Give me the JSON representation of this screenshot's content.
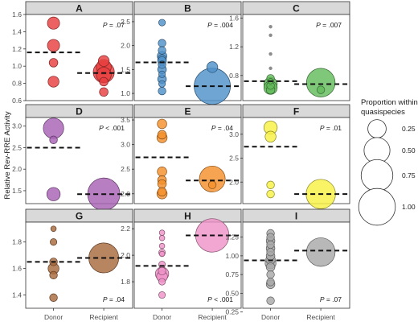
{
  "chart_data": {
    "type": "scatter",
    "ylabel": "Relative Rev-RRE Activity",
    "categories": [
      "Donor",
      "Recipient"
    ],
    "legend": {
      "title_line1": "Proportion within",
      "title_line2": "quasispecies",
      "position": "right",
      "sizes": [
        "0.25",
        "0.50",
        "0.75",
        "1.00"
      ]
    },
    "panels": [
      {
        "label": "A",
        "color": "#e8403f",
        "p_prefix": "P",
        "p_value": "= .07",
        "p_pos": "top",
        "ylim": [
          0.6,
          1.6
        ],
        "yticks": [
          "0.6",
          "0.8",
          "1.0",
          "1.2",
          "1.4",
          "1.6"
        ],
        "medians": [
          1.16,
          0.92
        ],
        "points": [
          {
            "group": "Donor",
            "y": 1.5,
            "size": 0.1
          },
          {
            "group": "Donor",
            "y": 1.24,
            "size": 0.1
          },
          {
            "group": "Donor",
            "y": 1.04,
            "size": 0.05
          },
          {
            "group": "Donor",
            "y": 0.82,
            "size": 0.08
          },
          {
            "group": "Recipient",
            "y": 1.06,
            "size": 0.08
          },
          {
            "group": "Recipient",
            "y": 0.99,
            "size": 0.15
          },
          {
            "group": "Recipient",
            "y": 0.93,
            "size": 0.3
          },
          {
            "group": "Recipient",
            "y": 0.9,
            "size": 0.15
          },
          {
            "group": "Recipient",
            "y": 0.82,
            "size": 0.05
          },
          {
            "group": "Recipient",
            "y": 0.7,
            "size": 0.05
          }
        ]
      },
      {
        "label": "B",
        "color": "#4f91c9",
        "p_prefix": "P",
        "p_value": "= .004",
        "p_pos": "top",
        "ylim": [
          0.85,
          2.65
        ],
        "yticks": [
          "1.0",
          "1.5",
          "2.0",
          "2.5"
        ],
        "medians": [
          1.65,
          1.15
        ],
        "points": [
          {
            "group": "Donor",
            "y": 2.48,
            "size": 0.03
          },
          {
            "group": "Donor",
            "y": 2.05,
            "size": 0.04
          },
          {
            "group": "Donor",
            "y": 1.9,
            "size": 0.04
          },
          {
            "group": "Donor",
            "y": 1.78,
            "size": 0.06
          },
          {
            "group": "Donor",
            "y": 1.72,
            "size": 0.05
          },
          {
            "group": "Donor",
            "y": 1.68,
            "size": 0.05
          },
          {
            "group": "Donor",
            "y": 1.6,
            "size": 0.04
          },
          {
            "group": "Donor",
            "y": 1.5,
            "size": 0.05
          },
          {
            "group": "Donor",
            "y": 1.4,
            "size": 0.03
          },
          {
            "group": "Donor",
            "y": 1.3,
            "size": 0.05
          },
          {
            "group": "Donor",
            "y": 1.2,
            "size": 0.03
          },
          {
            "group": "Donor",
            "y": 1.05,
            "size": 0.04
          },
          {
            "group": "Recipient",
            "y": 1.55,
            "size": 0.08
          },
          {
            "group": "Recipient",
            "y": 1.15,
            "size": 0.88
          }
        ]
      },
      {
        "label": "C",
        "color": "#63bb5c",
        "p_prefix": "P",
        "p_value": "= .007",
        "p_pos": "top",
        "ylim": [
          0.45,
          1.65
        ],
        "yticks": [
          "0.8",
          "1.2",
          "1.6"
        ],
        "medians": [
          0.72,
          0.68
        ],
        "points": [
          {
            "group": "Donor",
            "y": 1.48,
            "size": 0.005
          },
          {
            "group": "Donor",
            "y": 1.36,
            "size": 0.005
          },
          {
            "group": "Donor",
            "y": 1.1,
            "size": 0.005
          },
          {
            "group": "Donor",
            "y": 0.9,
            "size": 0.005
          },
          {
            "group": "Donor",
            "y": 0.76,
            "size": 0.04
          },
          {
            "group": "Donor",
            "y": 0.72,
            "size": 0.02
          },
          {
            "group": "Donor",
            "y": 0.68,
            "size": 0.12
          },
          {
            "group": "Donor",
            "y": 0.66,
            "size": 0.04
          },
          {
            "group": "Donor",
            "y": 0.63,
            "size": 0.12
          },
          {
            "group": "Donor",
            "y": 0.6,
            "size": 0.05
          },
          {
            "group": "Recipient",
            "y": 0.7,
            "size": 0.55
          },
          {
            "group": "Recipient",
            "y": 0.6,
            "size": 0.04
          }
        ]
      },
      {
        "label": "D",
        "color": "#a762b4",
        "p_prefix": "P",
        "p_value": "< .001",
        "p_pos": "top",
        "ylim": [
          1.2,
          3.2
        ],
        "yticks": [
          "1.5",
          "2.0",
          "2.5",
          "3.0"
        ],
        "medians": [
          2.5,
          1.42
        ],
        "points": [
          {
            "group": "Donor",
            "y": 2.95,
            "size": 0.28
          },
          {
            "group": "Donor",
            "y": 2.68,
            "size": 0.04
          },
          {
            "group": "Donor",
            "y": 1.42,
            "size": 0.12
          },
          {
            "group": "Recipient",
            "y": 1.42,
            "size": 0.7
          }
        ]
      },
      {
        "label": "E",
        "color": "#f4902c",
        "p_prefix": "P",
        "p_value": "= .04",
        "p_pos": "top",
        "ylim": [
          1.8,
          3.55
        ],
        "yticks": [
          "2.0",
          "2.5",
          "3.0",
          "3.5"
        ],
        "medians": [
          2.74,
          2.27
        ],
        "points": [
          {
            "group": "Donor",
            "y": 3.42,
            "size": 0.06
          },
          {
            "group": "Donor",
            "y": 3.2,
            "size": 0.05
          },
          {
            "group": "Donor",
            "y": 3.14,
            "size": 0.07
          },
          {
            "group": "Donor",
            "y": 2.45,
            "size": 0.06
          },
          {
            "group": "Donor",
            "y": 2.28,
            "size": 0.05
          },
          {
            "group": "Donor",
            "y": 2.2,
            "size": 0.05
          },
          {
            "group": "Donor",
            "y": 2.04,
            "size": 0.05
          },
          {
            "group": "Donor",
            "y": 2.0,
            "size": 0.07
          },
          {
            "group": "Recipient",
            "y": 2.3,
            "size": 0.45
          },
          {
            "group": "Recipient",
            "y": 2.18,
            "size": 0.04
          }
        ]
      },
      {
        "label": "F",
        "color": "#f8f044",
        "p_prefix": "P",
        "p_value": "= .01",
        "p_pos": "top",
        "ylim": [
          1.55,
          3.35
        ],
        "yticks": [
          "2.0",
          "2.5",
          "3.0"
        ],
        "medians": [
          2.74,
          1.75
        ],
        "points": [
          {
            "group": "Donor",
            "y": 3.14,
            "size": 0.12
          },
          {
            "group": "Donor",
            "y": 2.95,
            "size": 0.08
          },
          {
            "group": "Donor",
            "y": 1.94,
            "size": 0.04
          },
          {
            "group": "Donor",
            "y": 1.75,
            "size": 0.04
          },
          {
            "group": "Recipient",
            "y": 1.75,
            "size": 0.58
          }
        ]
      },
      {
        "label": "G",
        "color": "#a86a3e",
        "p_prefix": "P",
        "p_value": "= .04",
        "p_pos": "bottom",
        "ylim": [
          1.3,
          1.95
        ],
        "yticks": [
          "1.4",
          "1.6",
          "1.8"
        ],
        "medians": [
          1.65,
          1.68
        ],
        "points": [
          {
            "group": "Donor",
            "y": 1.9,
            "size": 0.02
          },
          {
            "group": "Donor",
            "y": 1.8,
            "size": 0.03
          },
          {
            "group": "Donor",
            "y": 1.65,
            "size": 0.04
          },
          {
            "group": "Donor",
            "y": 1.6,
            "size": 0.08
          },
          {
            "group": "Donor",
            "y": 1.55,
            "size": 0.04
          },
          {
            "group": "Donor",
            "y": 1.38,
            "size": 0.04
          },
          {
            "group": "Recipient",
            "y": 1.68,
            "size": 0.6
          }
        ]
      },
      {
        "label": "H",
        "color": "#ef93c8",
        "p_prefix": "P",
        "p_value": "< .001",
        "p_pos": "bottom",
        "ylim": [
          1.6,
          2.25
        ],
        "yticks": [
          "1.8",
          "2.0",
          "2.2"
        ],
        "medians": [
          1.92,
          2.15
        ],
        "points": [
          {
            "group": "Donor",
            "y": 2.17,
            "size": 0.02
          },
          {
            "group": "Donor",
            "y": 2.13,
            "size": 0.02
          },
          {
            "group": "Donor",
            "y": 2.07,
            "size": 0.02
          },
          {
            "group": "Donor",
            "y": 2.02,
            "size": 0.03
          },
          {
            "group": "Donor",
            "y": 2.01,
            "size": 0.02
          },
          {
            "group": "Donor",
            "y": 1.93,
            "size": 0.03
          },
          {
            "group": "Donor",
            "y": 1.88,
            "size": 0.04
          },
          {
            "group": "Donor",
            "y": 1.86,
            "size": 0.12
          },
          {
            "group": "Donor",
            "y": 1.84,
            "size": 0.08
          },
          {
            "group": "Donor",
            "y": 1.8,
            "size": 0.03
          },
          {
            "group": "Donor",
            "y": 1.7,
            "size": 0.03
          },
          {
            "group": "Recipient",
            "y": 2.15,
            "size": 0.75
          }
        ]
      },
      {
        "label": "I",
        "color": "#a8a8a8",
        "p_prefix": "P",
        "p_value": "= .07",
        "p_pos": "bottom",
        "ylim": [
          0.3,
          1.45
        ],
        "yticks": [
          "0.25",
          "0.50",
          "0.75",
          "1.00",
          "1.25"
        ],
        "medians": [
          0.94,
          1.07
        ],
        "points": [
          {
            "group": "Donor",
            "y": 1.3,
            "size": 0.04
          },
          {
            "group": "Donor",
            "y": 1.25,
            "size": 0.04
          },
          {
            "group": "Donor",
            "y": 1.2,
            "size": 0.05
          },
          {
            "group": "Donor",
            "y": 1.15,
            "size": 0.04
          },
          {
            "group": "Donor",
            "y": 1.1,
            "size": 0.05
          },
          {
            "group": "Donor",
            "y": 1.05,
            "size": 0.04
          },
          {
            "group": "Donor",
            "y": 1.0,
            "size": 0.05
          },
          {
            "group": "Donor",
            "y": 0.95,
            "size": 0.06
          },
          {
            "group": "Donor",
            "y": 0.9,
            "size": 0.08
          },
          {
            "group": "Donor",
            "y": 0.85,
            "size": 0.05
          },
          {
            "group": "Donor",
            "y": 0.75,
            "size": 0.04
          },
          {
            "group": "Donor",
            "y": 0.65,
            "size": 0.04
          },
          {
            "group": "Donor",
            "y": 0.62,
            "size": 0.05
          },
          {
            "group": "Donor",
            "y": 0.4,
            "size": 0.04
          },
          {
            "group": "Recipient",
            "y": 1.05,
            "size": 0.55
          }
        ]
      }
    ]
  }
}
